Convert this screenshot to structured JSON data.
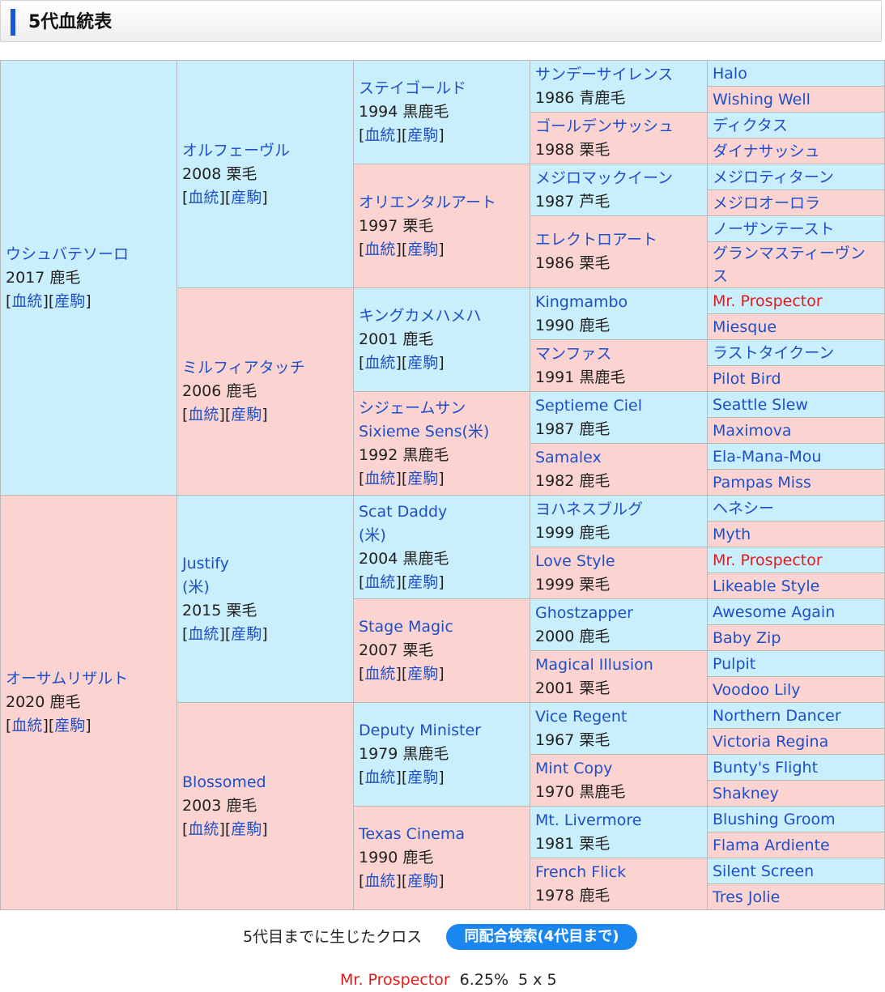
{
  "section_title": "5代血統表",
  "pedigree": {
    "sire": {
      "name": "ウシュバテソーロ",
      "info": "2017 鹿毛",
      "sire": {
        "name": "オルフェーヴル",
        "info": "2008 栗毛",
        "sire": {
          "name": "ステイゴールド",
          "info": "1994 黒鹿毛",
          "sire": {
            "name": "サンデーサイレンス",
            "info": "1986 青鹿毛",
            "sire": "Halo",
            "dam": "Wishing Well"
          },
          "dam": {
            "name": "ゴールデンサッシュ",
            "info": "1988 栗毛",
            "sire": "ディクタス",
            "dam": "ダイナサッシュ"
          }
        },
        "dam": {
          "name": "オリエンタルアート",
          "info": "1997 栗毛",
          "sire": {
            "name": "メジロマックイーン",
            "info": "1987 芦毛",
            "sire": "メジロティターン",
            "dam": "メジロオーロラ"
          },
          "dam": {
            "name": "エレクトロアート",
            "info": "1986 栗毛",
            "sire": "ノーザンテースト",
            "dam": "グランマスティーヴンス"
          }
        }
      },
      "dam": {
        "name": "ミルフィアタッチ",
        "info": "2006 鹿毛",
        "sire": {
          "name": "キングカメハメハ",
          "info": "2001 鹿毛",
          "sire": {
            "name": "Kingmambo",
            "info": "1990 鹿毛",
            "sire": "Mr. Prospector",
            "dam": "Miesque"
          },
          "dam": {
            "name": "マンファス",
            "info": "1991 黒鹿毛",
            "sire": "ラストタイクーン",
            "dam": "Pilot Bird"
          }
        },
        "dam": {
          "name": "シジェームサン",
          "name_sub": "Sixieme Sens(米)",
          "info": "1992 黒鹿毛",
          "sire": {
            "name": "Septieme Ciel",
            "info": "1987 鹿毛",
            "sire": "Seattle Slew",
            "dam": "Maximova"
          },
          "dam": {
            "name": "Samalex",
            "info": "1982 鹿毛",
            "sire": "Ela-Mana-Mou",
            "dam": "Pampas Miss"
          }
        }
      }
    },
    "dam": {
      "name": "オーサムリザルト",
      "info": "2020 鹿毛",
      "sire": {
        "name": "Justify",
        "name_sub": "(米)",
        "info": "2015 栗毛",
        "sire": {
          "name": "Scat Daddy",
          "name_sub": "(米)",
          "info": "2004 黒鹿毛",
          "sire": {
            "name": "ヨハネスブルグ",
            "info": "1999 鹿毛",
            "sire": "ヘネシー",
            "dam": "Myth"
          },
          "dam": {
            "name": "Love Style",
            "info": "1999 栗毛",
            "sire": "Mr. Prospector",
            "dam": "Likeable Style"
          }
        },
        "dam": {
          "name": "Stage Magic",
          "info": "2007 栗毛",
          "sire": {
            "name": "Ghostzapper",
            "info": "2000 鹿毛",
            "sire": "Awesome Again",
            "dam": "Baby Zip"
          },
          "dam": {
            "name": "Magical Illusion",
            "info": "2001 栗毛",
            "sire": "Pulpit",
            "dam": "Voodoo Lily"
          }
        }
      },
      "dam": {
        "name": "Blossomed",
        "info": "2003 鹿毛",
        "sire": {
          "name": "Deputy Minister",
          "info": "1979 黒鹿毛",
          "sire": {
            "name": "Vice Regent",
            "info": "1967 栗毛",
            "sire": "Northern Dancer",
            "dam": "Victoria Regina"
          },
          "dam": {
            "name": "Mint Copy",
            "info": "1970 黒鹿毛",
            "sire": "Bunty's Flight",
            "dam": "Shakney"
          }
        },
        "dam": {
          "name": "Texas Cinema",
          "info": "1990 鹿毛",
          "sire": {
            "name": "Mt. Livermore",
            "info": "1981 栗毛",
            "sire": "Blushing Groom",
            "dam": "Flama Ardiente"
          },
          "dam": {
            "name": "French Flick",
            "info": "1978 鹿毛",
            "sire": "Silent Screen",
            "dam": "Tres Jolie"
          }
        }
      }
    }
  },
  "links": {
    "bloodline": "血統",
    "offspring": "産駒"
  },
  "crosses": {
    "label": "5代目までに生じたクロス",
    "search_button": "同配合検索(4代目まで)",
    "items": [
      {
        "name": "Mr. Prospector",
        "percent": "6.25%",
        "generation": "5 x 5"
      }
    ]
  },
  "colors": {
    "male_bg": "#c9eefc",
    "female_bg": "#fbd4d1",
    "link": "#1f4fc8",
    "cross_highlight": "#e21a1a",
    "button": "#1a86ef"
  }
}
